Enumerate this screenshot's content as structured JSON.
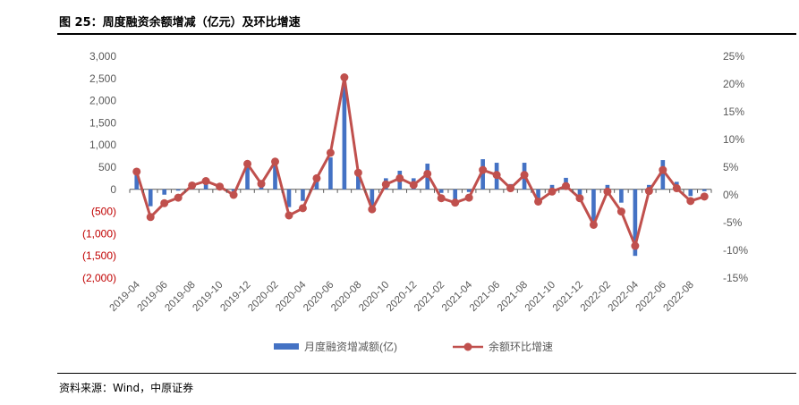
{
  "header": {
    "figure_title": "图 25：周度融资余额增减（亿元）及环比增速"
  },
  "footer": {
    "source": "资料来源：Wind，中原证券"
  },
  "colors": {
    "bar": "#4472C4",
    "line": "#C0504D",
    "negative_label": "#C00000",
    "axis": "#595959",
    "tick_text": "#595959"
  },
  "chart_data": {
    "type": "bar+line",
    "categories": [
      "2019-04",
      "2019-05",
      "2019-06",
      "2019-07",
      "2019-08",
      "2019-09",
      "2019-10",
      "2019-11",
      "2019-12",
      "2020-01",
      "2020-02",
      "2020-03",
      "2020-04",
      "2020-05",
      "2020-06",
      "2020-07",
      "2020-08",
      "2020-09",
      "2020-10",
      "2020-11",
      "2020-12",
      "2021-01",
      "2021-02",
      "2021-03",
      "2021-04",
      "2021-05",
      "2021-06",
      "2021-07",
      "2021-08",
      "2021-09",
      "2021-10",
      "2021-11",
      "2021-12",
      "2022-01",
      "2022-02",
      "2022-03",
      "2022-04",
      "2022-05",
      "2022-06",
      "2022-07",
      "2022-08",
      "2022-09"
    ],
    "x_tick_labels": [
      "2019-04",
      "2019-06",
      "2019-08",
      "2019-10",
      "2019-12",
      "2020-02",
      "2020-04",
      "2020-06",
      "2020-08",
      "2020-10",
      "2020-12",
      "2021-02",
      "2021-04",
      "2021-06",
      "2021-08",
      "2021-10",
      "2021-12",
      "2022-02",
      "2022-04",
      "2022-06",
      "2022-08"
    ],
    "x_tick_indices": [
      0,
      2,
      4,
      6,
      8,
      10,
      12,
      14,
      16,
      18,
      20,
      22,
      24,
      26,
      28,
      30,
      32,
      34,
      36,
      38,
      40
    ],
    "left_axis": {
      "ylim": [
        -2000,
        3000
      ],
      "ticks": [
        3000,
        2500,
        2000,
        1500,
        1000,
        500,
        0,
        -500,
        -1000,
        -1500,
        -2000
      ],
      "tick_labels": [
        "3,000",
        "2,500",
        "2,000",
        "1,500",
        "1,000",
        "500",
        "0",
        "(500)",
        "(1,000)",
        "(1,500)",
        "(2,000)"
      ]
    },
    "right_axis": {
      "ylim": [
        -15,
        25
      ],
      "ticks": [
        25,
        20,
        15,
        10,
        5,
        0,
        -5,
        -10,
        -15
      ],
      "tick_labels": [
        "25%",
        "20%",
        "15%",
        "10%",
        "5%",
        "0%",
        "-5%",
        "-10%",
        "-15%"
      ]
    },
    "series": [
      {
        "name": "月度融资增减额(亿)",
        "type": "bar",
        "axis": "left",
        "values": [
          400,
          -380,
          -120,
          -30,
          130,
          200,
          120,
          -40,
          550,
          180,
          560,
          -400,
          -260,
          230,
          720,
          2380,
          300,
          -420,
          250,
          420,
          250,
          580,
          -80,
          -250,
          -60,
          680,
          600,
          120,
          600,
          -200,
          100,
          260,
          -120,
          -870,
          100,
          -300,
          -1500,
          100,
          660,
          170,
          -150,
          -40
        ]
      },
      {
        "name": "余额环比增速",
        "type": "line",
        "axis": "right",
        "values": [
          4.2,
          -4.0,
          -1.5,
          -0.5,
          1.7,
          2.5,
          1.5,
          0.0,
          5.6,
          2.0,
          6.0,
          -3.7,
          -2.4,
          3.0,
          7.6,
          21.2,
          4.0,
          -2.6,
          1.9,
          3.0,
          1.8,
          3.8,
          -0.6,
          -1.4,
          -0.5,
          4.5,
          3.6,
          1.2,
          3.6,
          -1.2,
          0.6,
          1.6,
          -0.6,
          -5.4,
          0.6,
          -3.0,
          -9.2,
          0.7,
          4.5,
          1.2,
          -1.1,
          -0.3
        ]
      }
    ]
  }
}
